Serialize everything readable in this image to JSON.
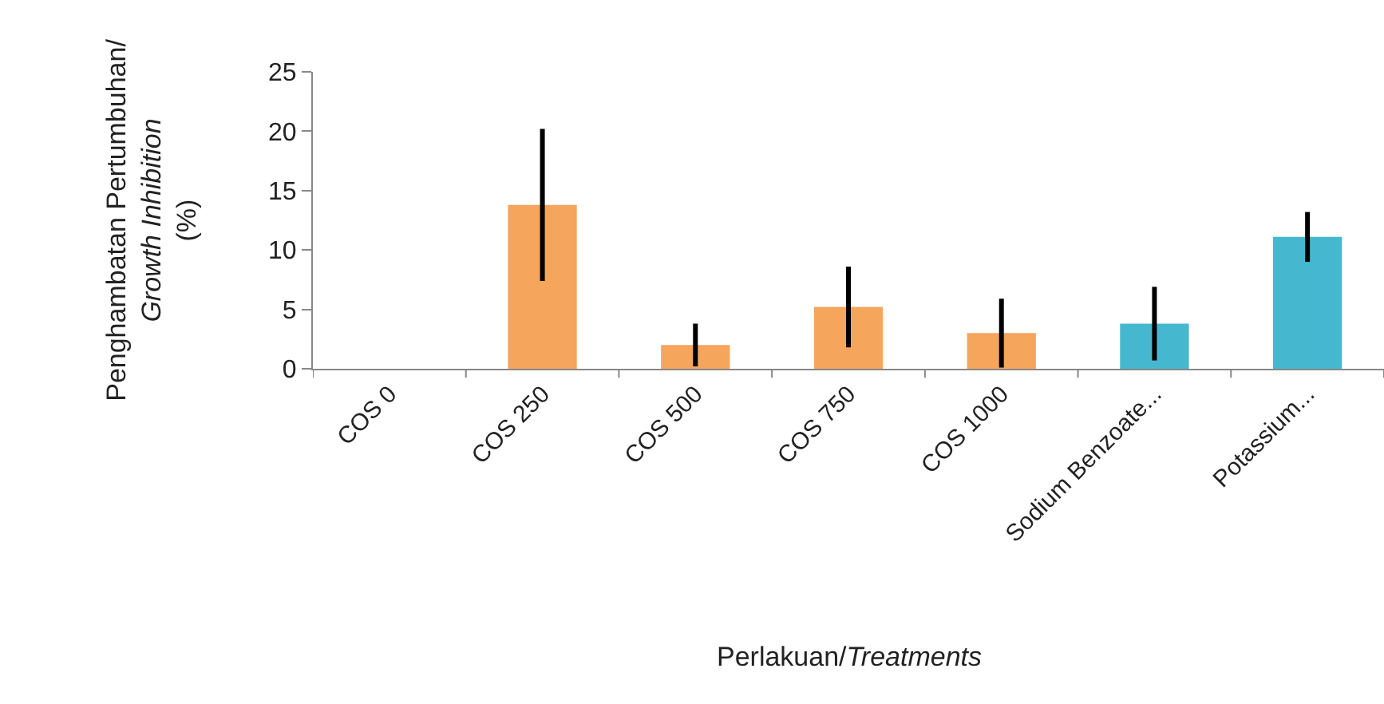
{
  "chart_data": {
    "type": "bar",
    "xlabel": "Perlakuan/Treatments",
    "ylabel": "Penghambatan Pertumbuhan/\nGrowth Inhibition\n(%)",
    "categories": [
      "COS 0",
      "COS 250",
      "COS 500",
      "COS 750",
      "COS 1000",
      "Sodium Benzoate...",
      "Potassium..."
    ],
    "values": [
      0,
      13.8,
      2.0,
      5.2,
      3.0,
      3.8,
      11.1
    ],
    "errors": [
      null,
      6.4,
      1.8,
      3.4,
      2.9,
      3.1,
      2.1
    ],
    "colors": [
      "#f5a55c",
      "#f5a55c",
      "#f5a55c",
      "#f5a55c",
      "#f5a55c",
      "#45b8cf",
      "#45b8cf"
    ],
    "ylim": [
      0,
      25
    ],
    "yticks": [
      0,
      5,
      10,
      15,
      20,
      25
    ],
    "grid": false
  }
}
